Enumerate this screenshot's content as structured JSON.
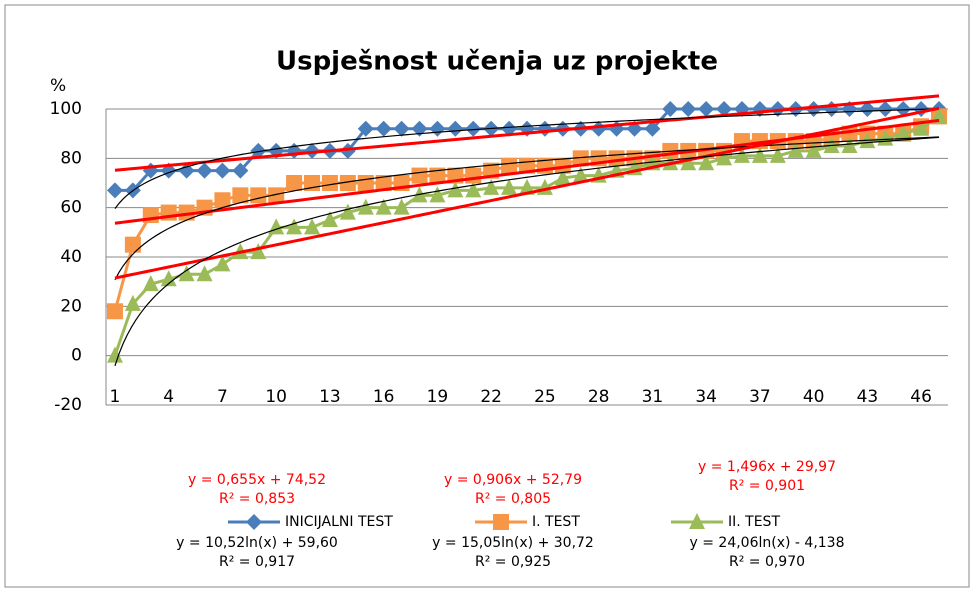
{
  "chart_data": {
    "type": "line",
    "title": "Uspješnost učenja uz projekte",
    "y_label": "%",
    "x": [
      1,
      2,
      3,
      4,
      5,
      6,
      7,
      8,
      9,
      10,
      11,
      12,
      13,
      14,
      15,
      16,
      17,
      18,
      19,
      20,
      21,
      22,
      23,
      24,
      25,
      26,
      27,
      28,
      29,
      30,
      31,
      32,
      33,
      34,
      35,
      36,
      37,
      38,
      39,
      40,
      41,
      42,
      43,
      44,
      45,
      46,
      47
    ],
    "xlim": [
      0.5,
      47.5
    ],
    "xticks": [
      1,
      4,
      7,
      10,
      13,
      16,
      19,
      22,
      25,
      28,
      31,
      34,
      37,
      40,
      43,
      46
    ],
    "ylim": [
      -20,
      100
    ],
    "yticks": [
      -20,
      0,
      20,
      40,
      60,
      80,
      100
    ],
    "grid": true,
    "legend": "bottom",
    "series": [
      {
        "name": "INICIJALNI TEST",
        "color": "#4a7ebb",
        "marker": "diamond",
        "values": [
          67,
          67,
          75,
          75,
          75,
          75,
          75,
          75,
          83,
          83,
          83,
          83,
          83,
          83,
          92,
          92,
          92,
          92,
          92,
          92,
          92,
          92,
          92,
          92,
          92,
          92,
          92,
          92,
          92,
          92,
          92,
          100,
          100,
          100,
          100,
          100,
          100,
          100,
          100,
          100,
          100,
          100,
          100,
          100,
          100,
          100,
          100
        ],
        "trendlines": [
          {
            "type": "linear",
            "color": "#ff0000",
            "slope": 0.655,
            "intercept": 74.52,
            "equation": "y = 0,655x + 74,52",
            "r2": "R² = 0,853"
          },
          {
            "type": "log",
            "color": "#000000",
            "slope": 10.52,
            "intercept": 59.6,
            "equation": "y = 10,52ln(x) + 59,60",
            "r2": "R² = 0,917"
          }
        ]
      },
      {
        "name": "I. TEST",
        "color": "#f79646",
        "marker": "square",
        "values": [
          18,
          45,
          57,
          58,
          58,
          60,
          63,
          65,
          65,
          65,
          70,
          70,
          70,
          70,
          70,
          70,
          70,
          73,
          73,
          73,
          73,
          75,
          77,
          77,
          77,
          77,
          80,
          80,
          80,
          80,
          80,
          83,
          83,
          83,
          83,
          87,
          87,
          87,
          87,
          87,
          88,
          90,
          90,
          90,
          90,
          93,
          97
        ],
        "trendlines": [
          {
            "type": "linear",
            "color": "#ff0000",
            "slope": 0.906,
            "intercept": 52.79,
            "equation": "y = 0,906x + 52,79",
            "r2": "R² = 0,805"
          },
          {
            "type": "log",
            "color": "#000000",
            "slope": 15.05,
            "intercept": 30.72,
            "equation": "y = 15,05ln(x) + 30,72",
            "r2": "R² = 0,925"
          }
        ]
      },
      {
        "name": "II. TEST",
        "color": "#9bbb59",
        "marker": "triangle",
        "values": [
          0,
          21,
          29,
          31,
          33,
          33,
          37,
          42,
          42,
          52,
          52,
          52,
          55,
          58,
          60,
          60,
          60,
          65,
          65,
          67,
          67,
          68,
          68,
          68,
          68,
          72,
          73,
          73,
          75,
          76,
          78,
          78,
          78,
          78,
          80,
          81,
          81,
          81,
          83,
          83,
          85,
          85,
          87,
          88,
          90,
          92,
          97
        ],
        "trendlines": [
          {
            "type": "linear",
            "color": "#ff0000",
            "slope": 1.496,
            "intercept": 29.97,
            "equation": "y = 1,496x + 29,97",
            "r2": "R² = 0,901"
          },
          {
            "type": "log",
            "color": "#000000",
            "slope": 24.06,
            "intercept": -4.138,
            "equation": "y = 24,06ln(x) - 4,138",
            "r2": "R² = 0,970"
          }
        ]
      }
    ]
  }
}
